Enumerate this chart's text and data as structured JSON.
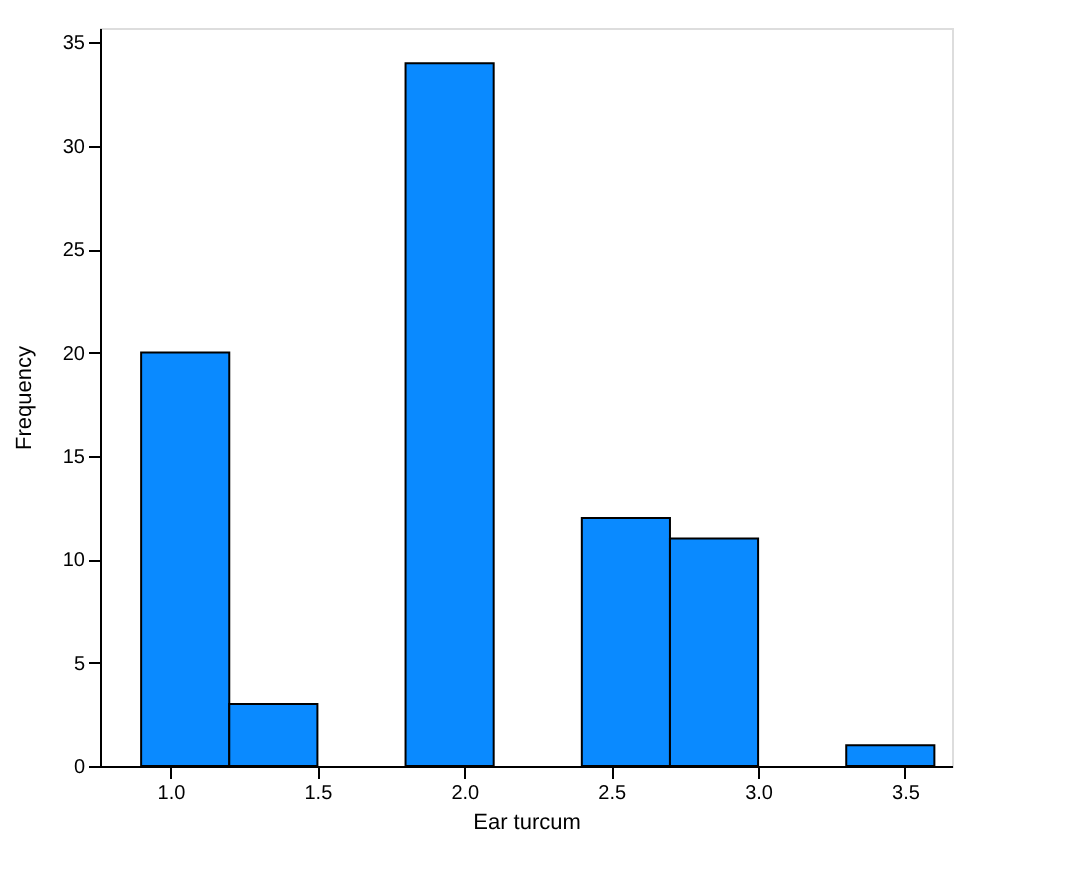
{
  "chart_data": {
    "type": "histogram",
    "xlabel": "Ear turcum",
    "ylabel": "Frequency",
    "bins": [
      0.9,
      1.2,
      1.5,
      1.8,
      2.1,
      2.4,
      2.7,
      3.0,
      3.3,
      3.6
    ],
    "values": [
      20,
      3,
      0,
      34,
      0,
      12,
      11,
      0,
      1
    ],
    "color": "#0a8aff",
    "xlim": [
      0.76,
      3.66
    ],
    "xticks": [
      {
        "value": 1.0,
        "label": "1.0"
      },
      {
        "value": 1.5,
        "label": "1.5"
      },
      {
        "value": 2.0,
        "label": "2.0"
      },
      {
        "value": 2.5,
        "label": "2.5"
      },
      {
        "value": 3.0,
        "label": "3.0"
      },
      {
        "value": 3.5,
        "label": "3.5"
      }
    ],
    "ylim": [
      0,
      35.7
    ],
    "yticks": [
      0,
      5,
      10,
      15,
      20,
      25,
      30,
      35
    ],
    "grid": false
  }
}
